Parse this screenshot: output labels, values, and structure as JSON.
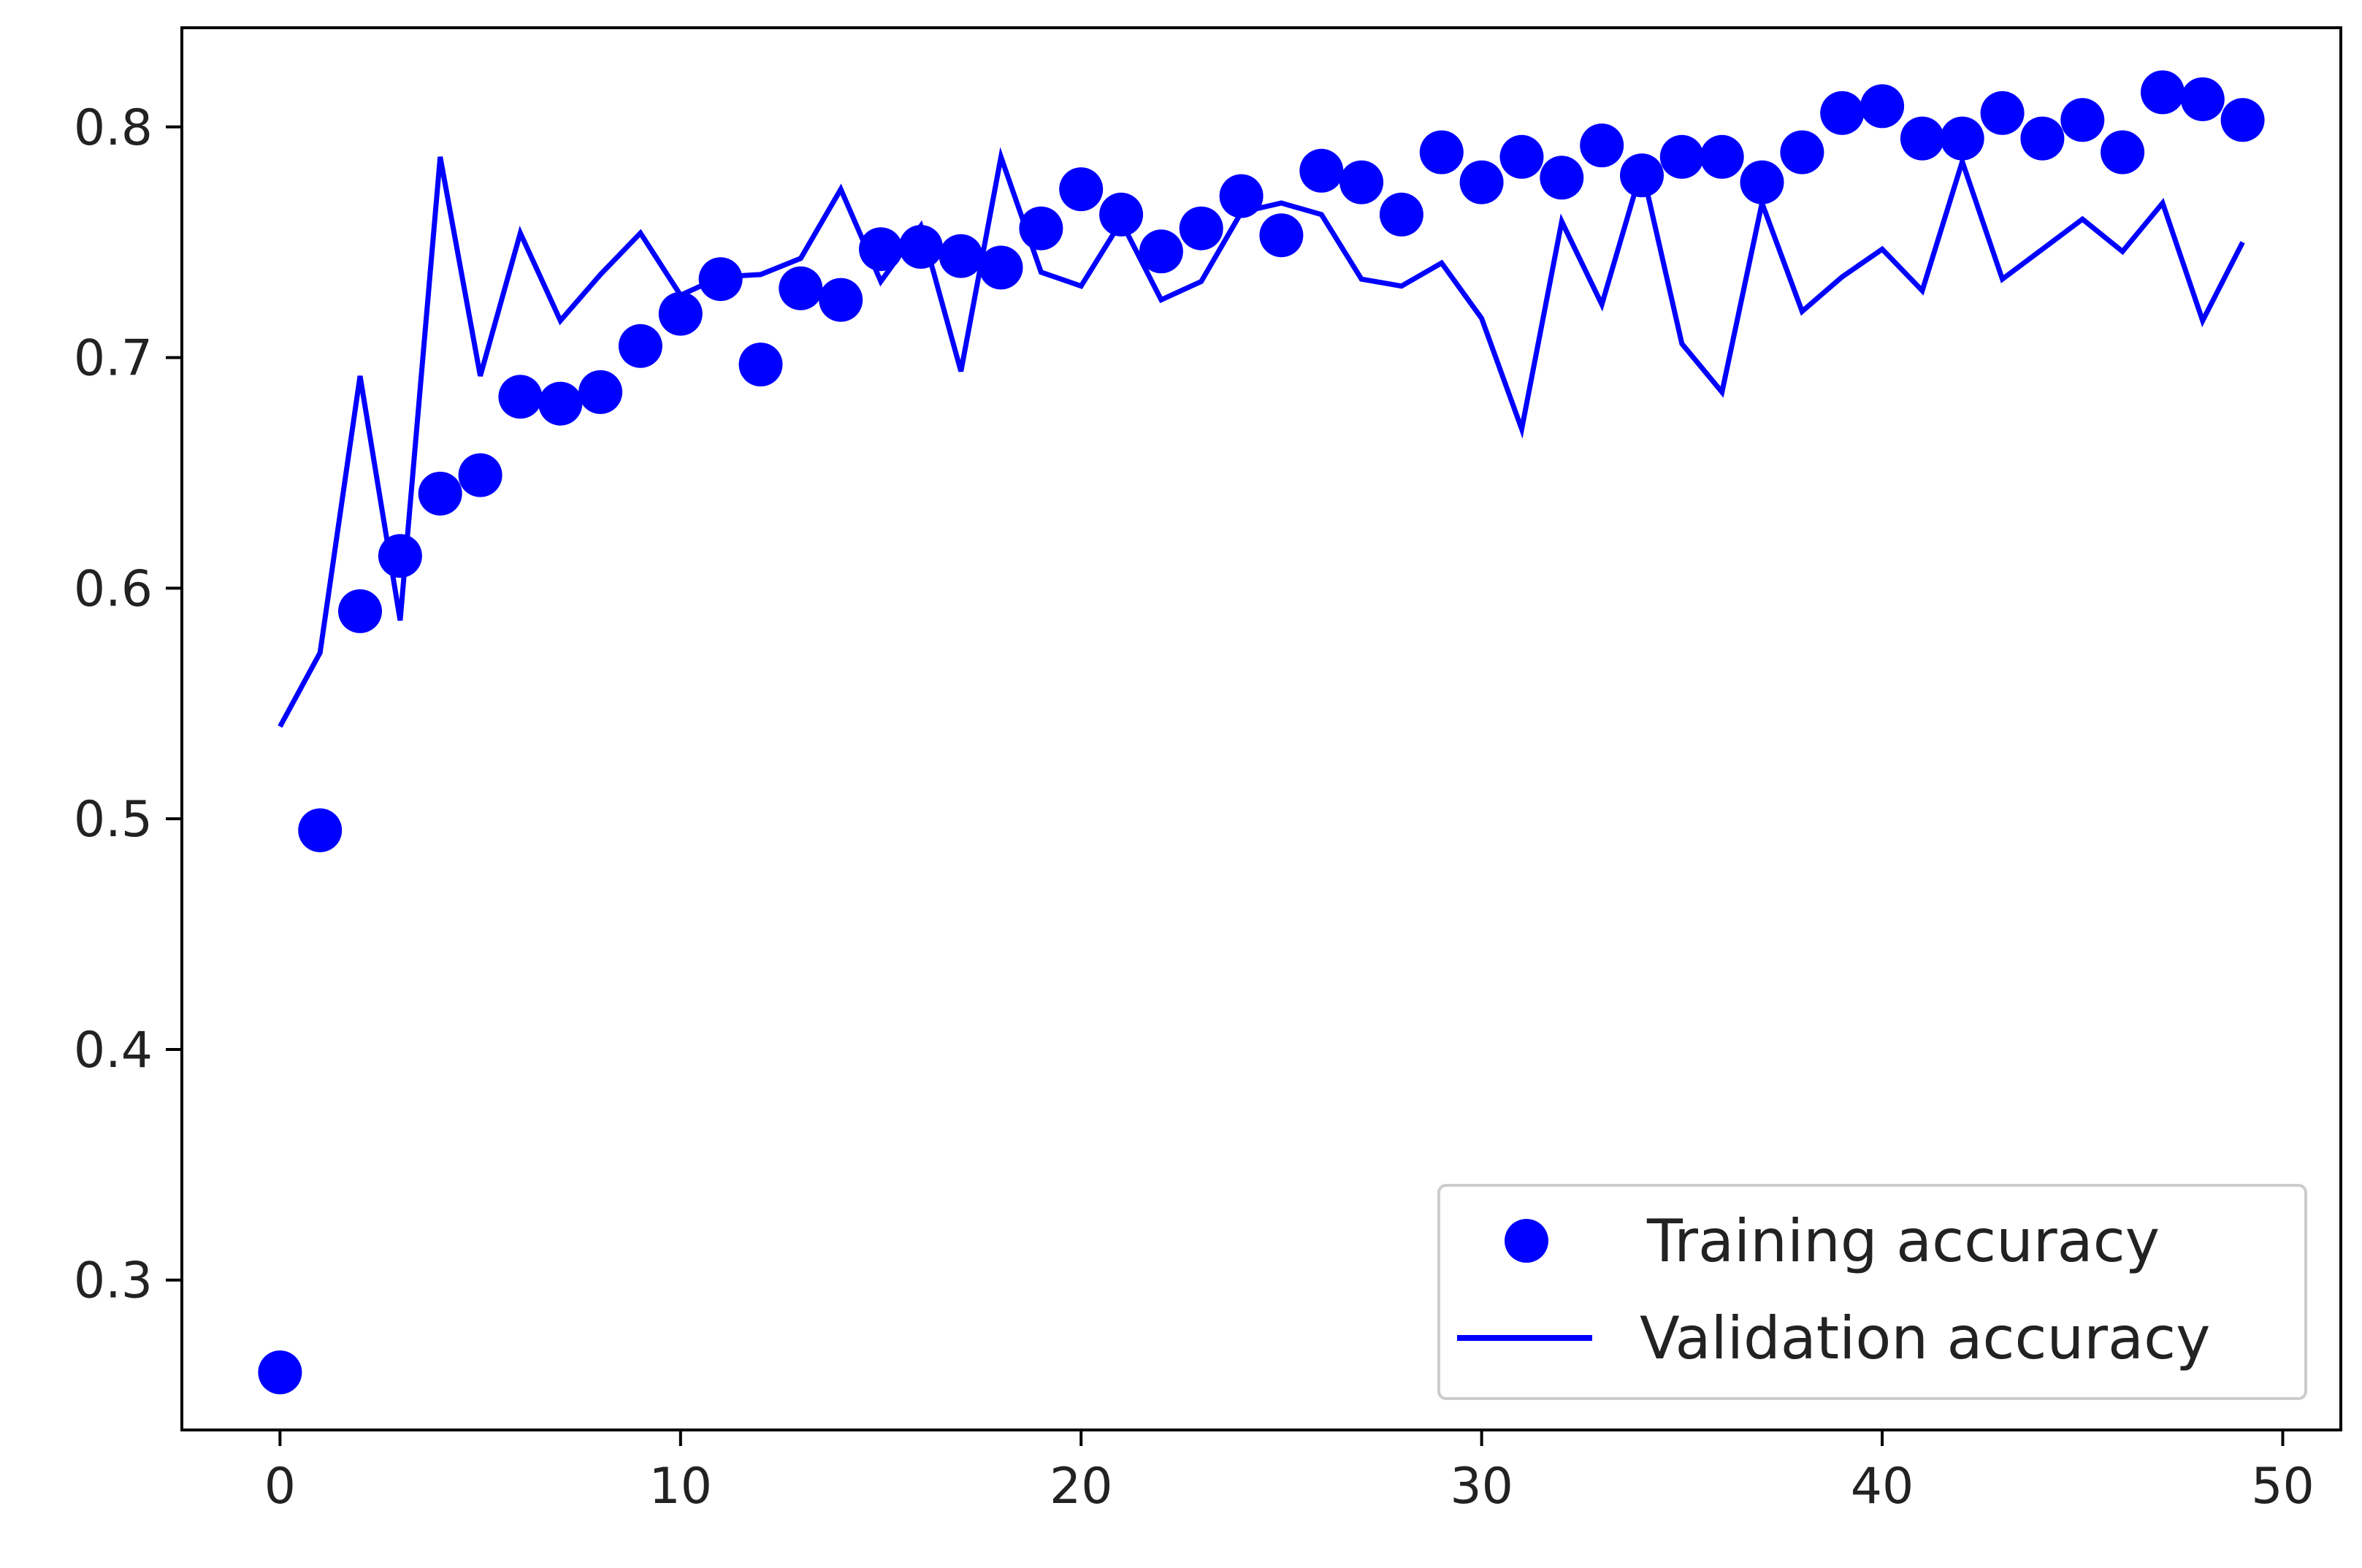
{
  "chart_data": {
    "type": "scatter",
    "title": "",
    "xlabel": "",
    "ylabel": "",
    "xlim": [
      -2.45,
      51.45
    ],
    "ylim": [
      0.235,
      0.843
    ],
    "xticks": [
      0,
      10,
      20,
      30,
      40,
      50
    ],
    "yticks": [
      0.3,
      0.4,
      0.5,
      0.6,
      0.7,
      0.8
    ],
    "xtick_labels": [
      "0",
      "10",
      "20",
      "30",
      "40",
      "50"
    ],
    "ytick_labels": [
      "0.3",
      "0.4",
      "0.5",
      "0.6",
      "0.7",
      "0.8"
    ],
    "grid": false,
    "legend_position": "lower-right",
    "x": [
      0,
      1,
      2,
      3,
      4,
      5,
      6,
      7,
      8,
      9,
      10,
      11,
      12,
      13,
      14,
      15,
      16,
      17,
      18,
      19,
      20,
      21,
      22,
      23,
      24,
      25,
      26,
      27,
      28,
      29,
      30,
      31,
      32,
      33,
      34,
      35,
      36,
      37,
      38,
      39,
      40,
      41,
      42,
      43,
      44,
      45,
      46,
      47,
      48,
      49
    ],
    "series": [
      {
        "name": "Training accuracy",
        "style": "markers",
        "color": "#0000ff",
        "values": [
          0.26,
          0.495,
          0.59,
          0.614,
          0.641,
          0.649,
          0.683,
          0.68,
          0.685,
          0.705,
          0.719,
          0.734,
          0.697,
          0.73,
          0.725,
          0.747,
          0.748,
          0.744,
          0.739,
          0.756,
          0.773,
          0.762,
          0.746,
          0.756,
          0.77,
          0.753,
          0.781,
          0.776,
          0.762,
          0.789,
          0.776,
          0.787,
          0.778,
          0.792,
          0.779,
          0.787,
          0.787,
          0.776,
          0.789,
          0.806,
          0.809,
          0.795,
          0.795,
          0.806,
          0.795,
          0.803,
          0.789,
          0.815,
          0.812,
          0.803
        ]
      },
      {
        "name": "Validation accuracy",
        "style": "line",
        "color": "#0000ff",
        "values": [
          0.54,
          0.572,
          0.692,
          0.586,
          0.787,
          0.692,
          0.754,
          0.716,
          0.736,
          0.754,
          0.727,
          0.735,
          0.736,
          0.743,
          0.773,
          0.733,
          0.757,
          0.694,
          0.787,
          0.737,
          0.731,
          0.759,
          0.725,
          0.733,
          0.763,
          0.767,
          0.762,
          0.734,
          0.731,
          0.741,
          0.717,
          0.669,
          0.759,
          0.723,
          0.782,
          0.706,
          0.685,
          0.767,
          0.72,
          0.735,
          0.747,
          0.729,
          0.785,
          0.734,
          0.747,
          0.76,
          0.746,
          0.767,
          0.716,
          0.75
        ]
      }
    ]
  }
}
